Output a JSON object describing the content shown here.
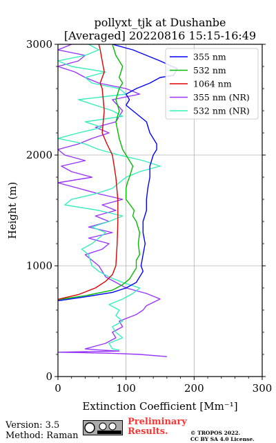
{
  "chart_data": {
    "type": "line",
    "title_line1": "pollyxt_tjk at Dushanbe",
    "title_line2": "[Averaged] 20220816 15:15-16:49",
    "xlabel": "Extinction Coefficient [Mm⁻¹]",
    "ylabel": "Height (m)",
    "xlim": [
      0,
      300
    ],
    "ylim": [
      0,
      3000
    ],
    "xticks": [
      "0",
      "100",
      "200",
      "300"
    ],
    "yticks": [
      "0",
      "1000",
      "2000",
      "3000"
    ],
    "grid": true,
    "legend_position": "top-right",
    "series": [
      {
        "name": "355 nm",
        "color": "#0000ff",
        "points": [
          [
            -5,
            680
          ],
          [
            40,
            720
          ],
          [
            80,
            760
          ],
          [
            100,
            800
          ],
          [
            115,
            850
          ],
          [
            120,
            900
          ],
          [
            125,
            950
          ],
          [
            122,
            1000
          ],
          [
            125,
            1100
          ],
          [
            128,
            1200
          ],
          [
            125,
            1300
          ],
          [
            125,
            1400
          ],
          [
            130,
            1500
          ],
          [
            130,
            1600
          ],
          [
            132,
            1700
          ],
          [
            135,
            1800
          ],
          [
            135,
            1900
          ],
          [
            140,
            2000
          ],
          [
            145,
            2050
          ],
          [
            145,
            2100
          ],
          [
            135,
            2200
          ],
          [
            130,
            2300
          ],
          [
            120,
            2350
          ],
          [
            110,
            2400
          ],
          [
            100,
            2450
          ],
          [
            105,
            2500
          ],
          [
            100,
            2550
          ],
          [
            115,
            2600
          ],
          [
            135,
            2650
          ],
          [
            150,
            2700
          ],
          [
            170,
            2720
          ],
          [
            175,
            2780
          ],
          [
            150,
            2850
          ],
          [
            110,
            2950
          ],
          [
            80,
            3000
          ]
        ]
      },
      {
        "name": "532 nm",
        "color": "#00bb00",
        "points": [
          [
            -5,
            690
          ],
          [
            40,
            730
          ],
          [
            80,
            780
          ],
          [
            95,
            830
          ],
          [
            105,
            880
          ],
          [
            110,
            930
          ],
          [
            115,
            980
          ],
          [
            115,
            1050
          ],
          [
            120,
            1100
          ],
          [
            118,
            1200
          ],
          [
            120,
            1300
          ],
          [
            115,
            1400
          ],
          [
            110,
            1450
          ],
          [
            112,
            1500
          ],
          [
            100,
            1600
          ],
          [
            100,
            1700
          ],
          [
            102,
            1750
          ],
          [
            105,
            1800
          ],
          [
            110,
            1900
          ],
          [
            100,
            2000
          ],
          [
            95,
            2050
          ],
          [
            90,
            2150
          ],
          [
            85,
            2300
          ],
          [
            90,
            2400
          ],
          [
            85,
            2500
          ],
          [
            90,
            2600
          ],
          [
            95,
            2650
          ],
          [
            90,
            2700
          ],
          [
            95,
            2800
          ],
          [
            85,
            2900
          ],
          [
            80,
            3000
          ]
        ]
      },
      {
        "name": "1064 nm",
        "color": "#dd0000",
        "points": [
          [
            -5,
            690
          ],
          [
            30,
            740
          ],
          [
            55,
            800
          ],
          [
            70,
            860
          ],
          [
            80,
            920
          ],
          [
            85,
            1000
          ],
          [
            87,
            1200
          ],
          [
            88,
            1400
          ],
          [
            88,
            1600
          ],
          [
            85,
            1800
          ],
          [
            80,
            2000
          ],
          [
            72,
            2100
          ],
          [
            65,
            2200
          ],
          [
            68,
            2400
          ],
          [
            65,
            2600
          ],
          [
            62,
            2650
          ],
          [
            68,
            2750
          ],
          [
            65,
            2850
          ],
          [
            62,
            2950
          ],
          [
            60,
            3000
          ]
        ]
      },
      {
        "name": "355 nm (NR)",
        "color": "#9933ff",
        "points": [
          [
            160,
            180
          ],
          [
            120,
            200
          ],
          [
            80,
            210
          ],
          [
            40,
            215
          ],
          [
            0,
            220
          ],
          [
            90,
            230
          ],
          [
            60,
            240
          ],
          [
            40,
            250
          ],
          [
            70,
            300
          ],
          [
            85,
            350
          ],
          [
            80,
            400
          ],
          [
            95,
            450
          ],
          [
            90,
            500
          ],
          [
            115,
            560
          ],
          [
            125,
            600
          ],
          [
            130,
            640
          ],
          [
            150,
            700
          ],
          [
            130,
            750
          ],
          [
            100,
            800
          ],
          [
            70,
            900
          ],
          [
            60,
            1000
          ],
          [
            50,
            1050
          ],
          [
            40,
            1100
          ],
          [
            65,
            1150
          ],
          [
            75,
            1200
          ],
          [
            45,
            1250
          ],
          [
            80,
            1300
          ],
          [
            45,
            1350
          ],
          [
            75,
            1400
          ],
          [
            55,
            1450
          ],
          [
            85,
            1500
          ],
          [
            65,
            1550
          ],
          [
            95,
            1600
          ],
          [
            60,
            1650
          ],
          [
            30,
            1700
          ],
          [
            0,
            1750
          ],
          [
            50,
            1800
          ],
          [
            20,
            1850
          ],
          [
            5,
            1900
          ],
          [
            40,
            1950
          ],
          [
            10,
            2000
          ],
          [
            0,
            2050
          ],
          [
            30,
            2100
          ],
          [
            50,
            2150
          ],
          [
            75,
            2200
          ],
          [
            55,
            2250
          ],
          [
            85,
            2300
          ],
          [
            95,
            2400
          ],
          [
            80,
            2500
          ],
          [
            120,
            2550
          ],
          [
            100,
            2600
          ],
          [
            60,
            2650
          ],
          [
            40,
            2700
          ],
          [
            25,
            2750
          ],
          [
            0,
            2800
          ],
          [
            30,
            2850
          ],
          [
            40,
            2900
          ],
          [
            0,
            2950
          ],
          [
            20,
            3000
          ]
        ]
      },
      {
        "name": "532 nm (NR)",
        "color": "#33eebb",
        "points": [
          [
            90,
            240
          ],
          [
            80,
            250
          ],
          [
            75,
            300
          ],
          [
            95,
            350
          ],
          [
            85,
            400
          ],
          [
            80,
            450
          ],
          [
            95,
            500
          ],
          [
            85,
            550
          ],
          [
            90,
            600
          ],
          [
            75,
            650
          ],
          [
            95,
            700
          ],
          [
            110,
            750
          ],
          [
            120,
            800
          ],
          [
            95,
            850
          ],
          [
            75,
            900
          ],
          [
            60,
            950
          ],
          [
            50,
            1000
          ],
          [
            45,
            1100
          ],
          [
            35,
            1150
          ],
          [
            50,
            1200
          ],
          [
            60,
            1250
          ],
          [
            70,
            1300
          ],
          [
            50,
            1350
          ],
          [
            75,
            1400
          ],
          [
            95,
            1450
          ],
          [
            60,
            1500
          ],
          [
            10,
            1550
          ],
          [
            20,
            1600
          ],
          [
            55,
            1650
          ],
          [
            80,
            1700
          ],
          [
            100,
            1800
          ],
          [
            120,
            1850
          ],
          [
            150,
            1900
          ],
          [
            125,
            1950
          ],
          [
            90,
            2000
          ],
          [
            60,
            2050
          ],
          [
            40,
            2100
          ],
          [
            0,
            2150
          ],
          [
            30,
            2200
          ],
          [
            65,
            2250
          ],
          [
            40,
            2300
          ],
          [
            95,
            2350
          ],
          [
            80,
            2400
          ],
          [
            55,
            2450
          ],
          [
            30,
            2500
          ],
          [
            100,
            2550
          ],
          [
            90,
            2600
          ],
          [
            50,
            2650
          ],
          [
            40,
            2700
          ],
          [
            70,
            2750
          ],
          [
            20,
            2800
          ],
          [
            0,
            2850
          ],
          [
            40,
            2900
          ],
          [
            60,
            2950
          ],
          [
            45,
            3000
          ]
        ]
      }
    ]
  },
  "footer": {
    "version": "Version: 3.5",
    "method": "Method: Raman",
    "preliminary": "Preliminary",
    "results": "Results.",
    "copyright1": "© TROPOS 2022.",
    "copyright2": "CC BY SA 4.0 License."
  }
}
